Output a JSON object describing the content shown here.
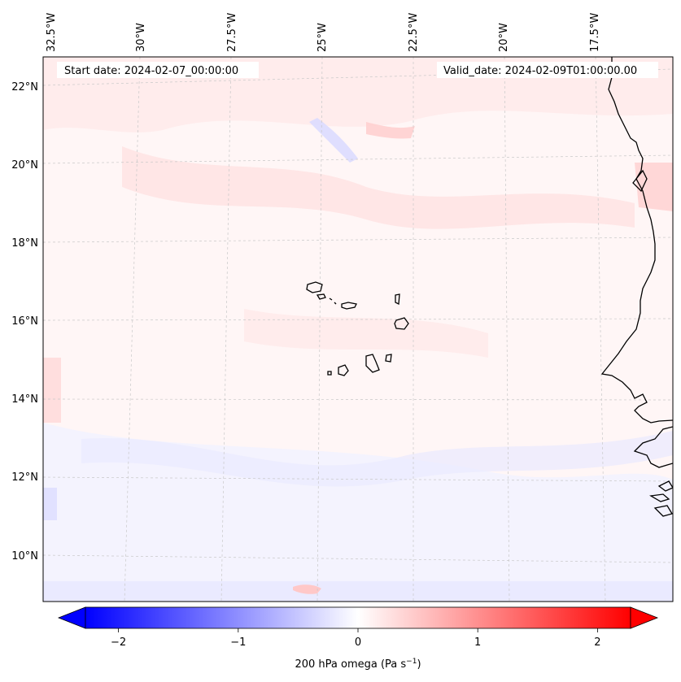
{
  "map": {
    "annotations": {
      "start": "Start date: 2024-02-07_00:00:00",
      "valid": "Valid_date: 2024-02-09T01:00:00.00"
    },
    "lon_labels": [
      "32.5°W",
      "30°W",
      "27.5°W",
      "25°W",
      "22.5°W",
      "20°W",
      "17.5°W"
    ],
    "lat_labels": [
      "22°N",
      "20°N",
      "18°N",
      "16°N",
      "14°N",
      "12°N",
      "10°N"
    ],
    "extent": {
      "lon": [
        -32.5,
        -15.0
      ],
      "lat": [
        9.0,
        22.8
      ]
    },
    "field": "200 hPa omega",
    "colors": {
      "negative": "#0000ff",
      "neutral": "#ffffff",
      "positive": "#ff0000",
      "coast": "#000000",
      "grid": "#c8c8c8"
    }
  },
  "colorbar": {
    "ticks": [
      "−2",
      "−1",
      "0",
      "1",
      "2"
    ],
    "tick_values": [
      -2,
      -1,
      0,
      1,
      2
    ],
    "range": [
      -2.5,
      2.5
    ],
    "label": "200 hPa omega (Pa s",
    "label_sup": "−1",
    "label_close": ")"
  }
}
